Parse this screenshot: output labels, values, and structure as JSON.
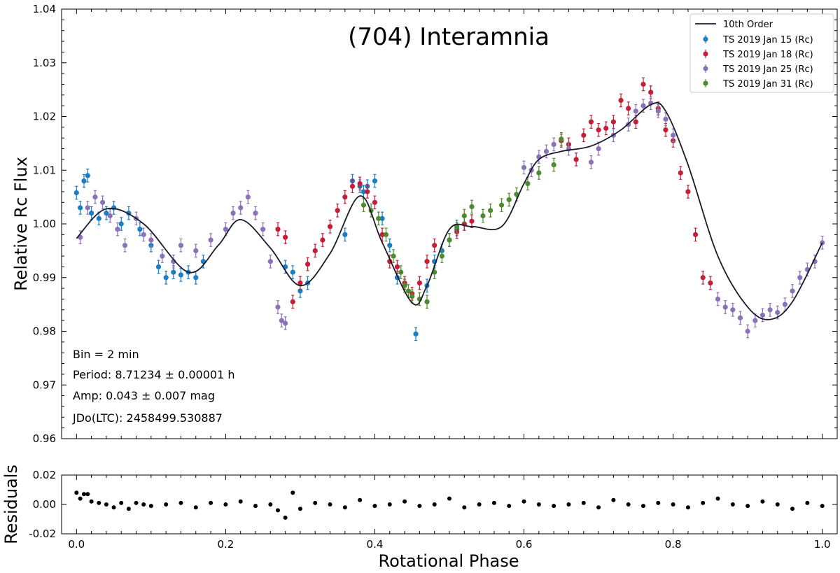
{
  "chart_data": [
    {
      "type": "scatter",
      "title": "(704) Interamnia",
      "xlabel": "",
      "ylabel": "Relative  Rc  Flux",
      "xlim": [
        -0.02,
        1.02
      ],
      "ylim": [
        0.96,
        1.04
      ],
      "y_ticks": [
        "0.96",
        "0.97",
        "0.98",
        "0.99",
        "1.00",
        "1.01",
        "1.02",
        "1.03",
        "1.04"
      ],
      "legend_position": "top-right",
      "fit_label": "10th Order",
      "fit_x": [
        0.0,
        0.04,
        0.09,
        0.15,
        0.19,
        0.22,
        0.26,
        0.3,
        0.34,
        0.38,
        0.41,
        0.45,
        0.47,
        0.5,
        0.53,
        0.57,
        0.6,
        0.62,
        0.65,
        0.69,
        0.73,
        0.77,
        0.79,
        0.82,
        0.86,
        0.9,
        0.93,
        0.96,
        1.0
      ],
      "fit_y": [
        0.9973,
        1.0028,
        1.0,
        0.991,
        0.996,
        1.0008,
        0.9955,
        0.9885,
        0.9945,
        1.0052,
        0.9965,
        0.9853,
        0.9885,
        0.999,
        0.9995,
        0.9995,
        1.0075,
        1.012,
        1.0135,
        1.0145,
        1.0175,
        1.0222,
        1.021,
        1.011,
        0.994,
        0.9845,
        0.9822,
        0.9855,
        0.9965
      ],
      "series": [
        {
          "name": "TS 2019 Jan 15  (Rc)",
          "color": "#1b7ec4",
          "x": [
            0.0,
            0.005,
            0.01,
            0.015,
            0.02,
            0.03,
            0.04,
            0.05,
            0.06,
            0.07,
            0.085,
            0.1,
            0.11,
            0.12,
            0.13,
            0.14,
            0.15,
            0.16,
            0.17,
            0.36,
            0.37,
            0.38,
            0.385,
            0.39,
            0.4,
            0.41,
            0.42,
            0.43,
            0.44,
            0.455,
            0.47,
            0.48,
            0.49,
            0.5,
            0.51,
            0.52,
            0.28,
            0.29,
            0.3,
            0.31
          ],
          "y": [
            1.0058,
            1.003,
            1.008,
            1.009,
            1.002,
            1.001,
            1.002,
            1.003,
            1.0,
            1.002,
            0.999,
            0.996,
            0.992,
            0.99,
            0.991,
            0.9905,
            0.991,
            0.99,
            0.993,
            0.998,
            1.008,
            1.007,
            1.006,
            1.007,
            1.008,
            1.001,
            0.996,
            0.99,
            0.9885,
            0.9795,
            0.9885,
            0.993,
            0.995,
            0.997,
            0.999,
            1.0,
            0.992,
            0.991,
            0.9875,
            0.989
          ],
          "err": 0.0012
        },
        {
          "name": "TS 2019 Jan 18  (Rc)",
          "color": "#c41e3a",
          "x": [
            0.27,
            0.28,
            0.29,
            0.3,
            0.31,
            0.32,
            0.33,
            0.34,
            0.35,
            0.36,
            0.37,
            0.38,
            0.39,
            0.4,
            0.41,
            0.42,
            0.43,
            0.44,
            0.45,
            0.46,
            0.47,
            0.48,
            0.51,
            0.52,
            0.53,
            0.65,
            0.66,
            0.67,
            0.68,
            0.69,
            0.7,
            0.71,
            0.72,
            0.73,
            0.74,
            0.75,
            0.76,
            0.77,
            0.78,
            0.79,
            0.8,
            0.81,
            0.82,
            0.83,
            0.84,
            0.85
          ],
          "y": [
            0.999,
            0.9975,
            0.9855,
            0.989,
            0.9925,
            0.995,
            0.997,
            0.9995,
            1.0025,
            1.005,
            1.007,
            1.0075,
            1.006,
            1.004,
            0.998,
            0.993,
            0.992,
            0.989,
            0.987,
            0.989,
            0.993,
            0.996,
            0.9985,
            1.0,
            1.0005,
            1.0155,
            1.0148,
            1.012,
            1.0165,
            1.019,
            1.0175,
            1.0178,
            1.019,
            1.023,
            1.0215,
            1.019,
            1.026,
            1.0245,
            1.0215,
            1.0175,
            1.0155,
            1.0095,
            1.006,
            0.998,
            0.99,
            0.989
          ],
          "err": 0.0012
        },
        {
          "name": "TS 2019 Jan 25  (Rc)",
          "color": "#8a72b8",
          "x": [
            0.005,
            0.015,
            0.025,
            0.035,
            0.045,
            0.055,
            0.065,
            0.08,
            0.09,
            0.1,
            0.115,
            0.13,
            0.14,
            0.16,
            0.18,
            0.2,
            0.21,
            0.22,
            0.23,
            0.24,
            0.25,
            0.26,
            0.27,
            0.275,
            0.28,
            0.6,
            0.61,
            0.62,
            0.63,
            0.64,
            0.66,
            0.69,
            0.7,
            0.72,
            0.74,
            0.75,
            0.76,
            0.77,
            0.78,
            0.79,
            0.8,
            0.86,
            0.87,
            0.88,
            0.89,
            0.9,
            0.91,
            0.92,
            0.93,
            0.94,
            0.95,
            0.96,
            0.97,
            0.98,
            0.99,
            1.0
          ],
          "y": [
            0.9975,
            1.003,
            1.005,
            1.004,
            1.0015,
            0.999,
            0.996,
            1.001,
            0.998,
            0.997,
            0.994,
            0.993,
            0.996,
            0.995,
            0.997,
            0.999,
            1.002,
            1.003,
            1.005,
            1.002,
            0.999,
            0.993,
            0.9845,
            0.982,
            0.9815,
            1.0105,
            1.01,
            1.0125,
            1.0135,
            1.0148,
            1.014,
            1.0115,
            1.014,
            1.0165,
            1.0185,
            1.021,
            1.022,
            1.0225,
            1.021,
            1.0195,
            1.0165,
            0.986,
            0.9845,
            0.984,
            0.9825,
            0.98,
            0.982,
            0.983,
            0.984,
            0.9835,
            0.985,
            0.9875,
            0.99,
            0.9915,
            0.993,
            0.9965
          ],
          "err": 0.0012
        },
        {
          "name": "TS 2019 Jan 31  (Rc)",
          "color": "#4e8a2e",
          "x": [
            0.385,
            0.395,
            0.405,
            0.415,
            0.425,
            0.435,
            0.44,
            0.445,
            0.45,
            0.46,
            0.47,
            0.48,
            0.49,
            0.5,
            0.51,
            0.52,
            0.53,
            0.545,
            0.555,
            0.57,
            0.58,
            0.59,
            0.605,
            0.62,
            0.64,
            0.65
          ],
          "y": [
            1.0035,
            1.0025,
            1.001,
            0.998,
            0.994,
            0.991,
            0.9885,
            0.9875,
            0.9865,
            0.986,
            0.9855,
            0.991,
            0.994,
            0.997,
            0.9995,
            1.0015,
            1.0032,
            1.0015,
            1.0025,
            1.0035,
            1.0045,
            1.0055,
            1.0075,
            1.0095,
            1.011,
            1.0158
          ],
          "err": 0.0012
        }
      ]
    },
    {
      "type": "scatter",
      "title": "",
      "xlabel": "Rotational Phase",
      "ylabel": "Residuals",
      "xlim": [
        -0.02,
        1.02
      ],
      "ylim": [
        -0.02,
        0.02
      ],
      "x_ticks": [
        "0.0",
        "0.2",
        "0.4",
        "0.6",
        "0.8",
        "1.0"
      ],
      "y_ticks": [
        "-0.02",
        "0.00",
        "0.02"
      ],
      "series": [
        {
          "color": "#000000",
          "x": [
            0.0,
            0.005,
            0.01,
            0.015,
            0.02,
            0.03,
            0.04,
            0.05,
            0.06,
            0.07,
            0.08,
            0.09,
            0.1,
            0.12,
            0.14,
            0.16,
            0.18,
            0.2,
            0.22,
            0.24,
            0.26,
            0.27,
            0.28,
            0.29,
            0.3,
            0.32,
            0.34,
            0.36,
            0.38,
            0.4,
            0.42,
            0.44,
            0.46,
            0.48,
            0.5,
            0.52,
            0.54,
            0.56,
            0.58,
            0.6,
            0.62,
            0.64,
            0.66,
            0.68,
            0.7,
            0.72,
            0.74,
            0.76,
            0.78,
            0.8,
            0.82,
            0.84,
            0.86,
            0.88,
            0.9,
            0.92,
            0.94,
            0.96,
            0.98,
            1.0
          ],
          "y": [
            0.008,
            0.004,
            0.007,
            0.007,
            0.002,
            0.001,
            0.0,
            -0.002,
            0.001,
            -0.003,
            0.001,
            0.0,
            -0.001,
            0.0,
            0.001,
            -0.002,
            0.001,
            0.0,
            0.002,
            -0.001,
            0.0,
            -0.004,
            -0.009,
            0.008,
            -0.003,
            0.001,
            0.0,
            -0.002,
            0.003,
            -0.001,
            0.0,
            0.002,
            -0.001,
            0.0,
            0.004,
            -0.002,
            0.0,
            0.001,
            -0.001,
            0.002,
            0.0,
            -0.001,
            0.0,
            0.001,
            -0.002,
            0.003,
            0.0,
            -0.001,
            0.001,
            0.0,
            -0.002,
            0.001,
            0.004,
            0.0,
            -0.001,
            0.002,
            0.0,
            -0.003,
            0.001,
            -0.001
          ]
        }
      ]
    }
  ],
  "annotations": {
    "bin": "Bin = 2 min",
    "period": "Period: 8.71234 ± 0.00001 h",
    "amp": "Amp: 0.043 ± 0.007 mag",
    "jd": "JDo(LTC): 2458499.530887"
  }
}
